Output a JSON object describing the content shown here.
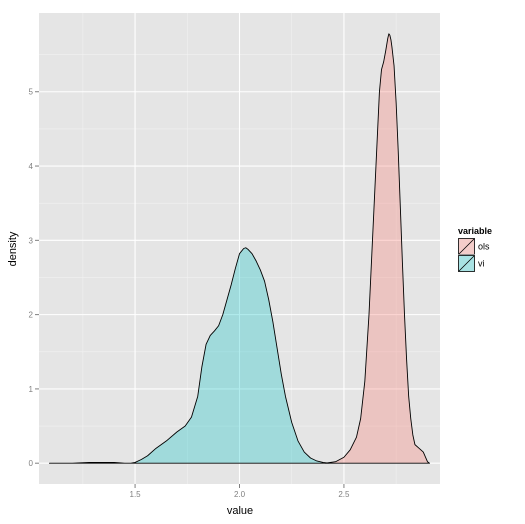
{
  "chart_data": {
    "type": "area",
    "title": "",
    "xlabel": "value",
    "ylabel": "density",
    "xlim": [
      1.04,
      2.96
    ],
    "ylim": [
      -0.28,
      6.06
    ],
    "x_ticks": [
      1.5,
      2.0,
      2.5
    ],
    "x_tick_labels": [
      "1.5",
      "2.0",
      "2.5"
    ],
    "y_ticks": [
      0,
      1,
      2,
      3,
      4,
      5
    ],
    "y_tick_labels": [
      "0",
      "1",
      "2",
      "3",
      "4",
      "5"
    ],
    "grid": true,
    "legend": {
      "title": "variable",
      "position": "right",
      "entries": [
        {
          "label": "ols",
          "color": "#F8766D"
        },
        {
          "label": "vi",
          "color": "#00BFC4"
        }
      ]
    },
    "series": [
      {
        "name": "vi",
        "color": "#00BFC4",
        "x": [
          1.09,
          1.2,
          1.28,
          1.32,
          1.4,
          1.45,
          1.48,
          1.5,
          1.53,
          1.56,
          1.6,
          1.65,
          1.7,
          1.74,
          1.77,
          1.8,
          1.82,
          1.84,
          1.86,
          1.88,
          1.9,
          1.92,
          1.94,
          1.96,
          1.98,
          2.0,
          2.02,
          2.03,
          2.04,
          2.06,
          2.08,
          2.1,
          2.12,
          2.14,
          2.16,
          2.18,
          2.2,
          2.22,
          2.25,
          2.28,
          2.31,
          2.34,
          2.37,
          2.4,
          2.43
        ],
        "y": [
          0.0,
          0.0,
          0.01,
          0.01,
          0.01,
          0.0,
          0.0,
          0.01,
          0.05,
          0.1,
          0.2,
          0.3,
          0.42,
          0.5,
          0.62,
          0.9,
          1.3,
          1.6,
          1.72,
          1.78,
          1.85,
          2.0,
          2.2,
          2.4,
          2.62,
          2.82,
          2.89,
          2.9,
          2.88,
          2.82,
          2.72,
          2.6,
          2.45,
          2.2,
          1.9,
          1.55,
          1.2,
          0.9,
          0.55,
          0.3,
          0.15,
          0.07,
          0.03,
          0.01,
          0.0
        ]
      },
      {
        "name": "ols",
        "color": "#F8766D",
        "x": [
          2.41,
          2.46,
          2.5,
          2.53,
          2.56,
          2.58,
          2.6,
          2.62,
          2.64,
          2.66,
          2.67,
          2.68,
          2.69,
          2.7,
          2.71,
          2.715,
          2.72,
          2.725,
          2.73,
          2.74,
          2.75,
          2.76,
          2.77,
          2.78,
          2.79,
          2.8,
          2.81,
          2.82,
          2.83,
          2.84,
          2.86,
          2.88,
          2.9,
          2.91
        ],
        "y": [
          0.0,
          0.02,
          0.08,
          0.18,
          0.35,
          0.6,
          1.1,
          2.0,
          3.2,
          4.4,
          5.0,
          5.3,
          5.4,
          5.55,
          5.72,
          5.78,
          5.76,
          5.7,
          5.6,
          5.35,
          4.85,
          4.2,
          3.45,
          2.7,
          2.0,
          1.4,
          0.9,
          0.6,
          0.38,
          0.25,
          0.2,
          0.15,
          0.02,
          0.0
        ]
      }
    ]
  }
}
